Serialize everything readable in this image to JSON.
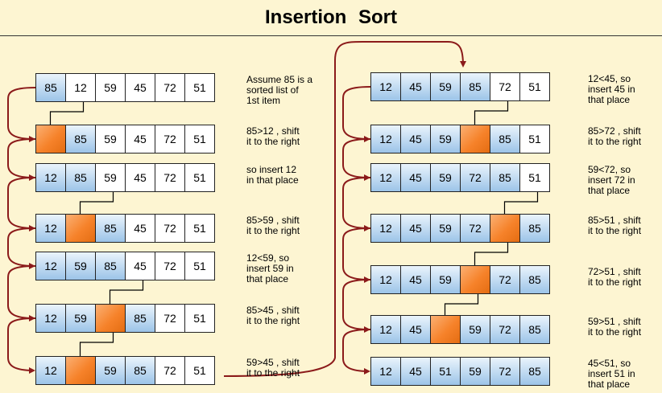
{
  "title": "Insertion  Sort",
  "steps_left": [
    {
      "cells": [
        "85",
        "12",
        "59",
        "45",
        "72",
        "51"
      ],
      "sorted": 1,
      "gap": -1,
      "note": "Assume 85 is a\nsorted list of\n1st item"
    },
    {
      "cells": [
        "",
        "85",
        "59",
        "45",
        "72",
        "51"
      ],
      "sorted": 2,
      "gap": 0,
      "note": "85>12 , shift\nit to the right"
    },
    {
      "cells": [
        "12",
        "85",
        "59",
        "45",
        "72",
        "51"
      ],
      "sorted": 2,
      "gap": -1,
      "note": "so insert 12\nin that place"
    },
    {
      "cells": [
        "12",
        "",
        "85",
        "45",
        "72",
        "51"
      ],
      "sorted": 3,
      "gap": 1,
      "note": "85>59 , shift\nit to the right"
    },
    {
      "cells": [
        "12",
        "59",
        "85",
        "45",
        "72",
        "51"
      ],
      "sorted": 3,
      "gap": -1,
      "note": "12<59, so\ninsert 59 in\nthat place"
    },
    {
      "cells": [
        "12",
        "59",
        "",
        "85",
        "72",
        "51"
      ],
      "sorted": 4,
      "gap": 2,
      "note": "85>45 , shift\nit to the right"
    },
    {
      "cells": [
        "12",
        "",
        "59",
        "85",
        "72",
        "51"
      ],
      "sorted": 4,
      "gap": 1,
      "note": "59>45 , shift\nit to the right"
    }
  ],
  "steps_right": [
    {
      "cells": [
        "12",
        "45",
        "59",
        "85",
        "72",
        "51"
      ],
      "sorted": 4,
      "gap": -1,
      "note": "12<45, so\ninsert 45 in\nthat place"
    },
    {
      "cells": [
        "12",
        "45",
        "59",
        "",
        "85",
        "51"
      ],
      "sorted": 5,
      "gap": 3,
      "note": "85>72 , shift\nit to the right"
    },
    {
      "cells": [
        "12",
        "45",
        "59",
        "72",
        "85",
        "51"
      ],
      "sorted": 5,
      "gap": -1,
      "note": "59<72, so\ninsert 72 in\nthat place"
    },
    {
      "cells": [
        "12",
        "45",
        "59",
        "72",
        "",
        "85"
      ],
      "sorted": 6,
      "gap": 4,
      "note": "85>51 , shift\nit to the right"
    },
    {
      "cells": [
        "12",
        "45",
        "59",
        "",
        "72",
        "85"
      ],
      "sorted": 6,
      "gap": 3,
      "note": "72>51 , shift\nit to the right"
    },
    {
      "cells": [
        "12",
        "45",
        "",
        "59",
        "72",
        "85"
      ],
      "sorted": 6,
      "gap": 2,
      "note": "59>51 , shift\nit to the right"
    },
    {
      "cells": [
        "12",
        "45",
        "51",
        "59",
        "72",
        "85"
      ],
      "sorted": 6,
      "gap": -1,
      "note": "45<51, so\ninsert 51 in\nthat place"
    }
  ],
  "colors": {
    "sorted": "#a9cbea",
    "unsorted": "#ffffff",
    "gap": "#f6822a",
    "arrow": "#8b1a1a"
  }
}
